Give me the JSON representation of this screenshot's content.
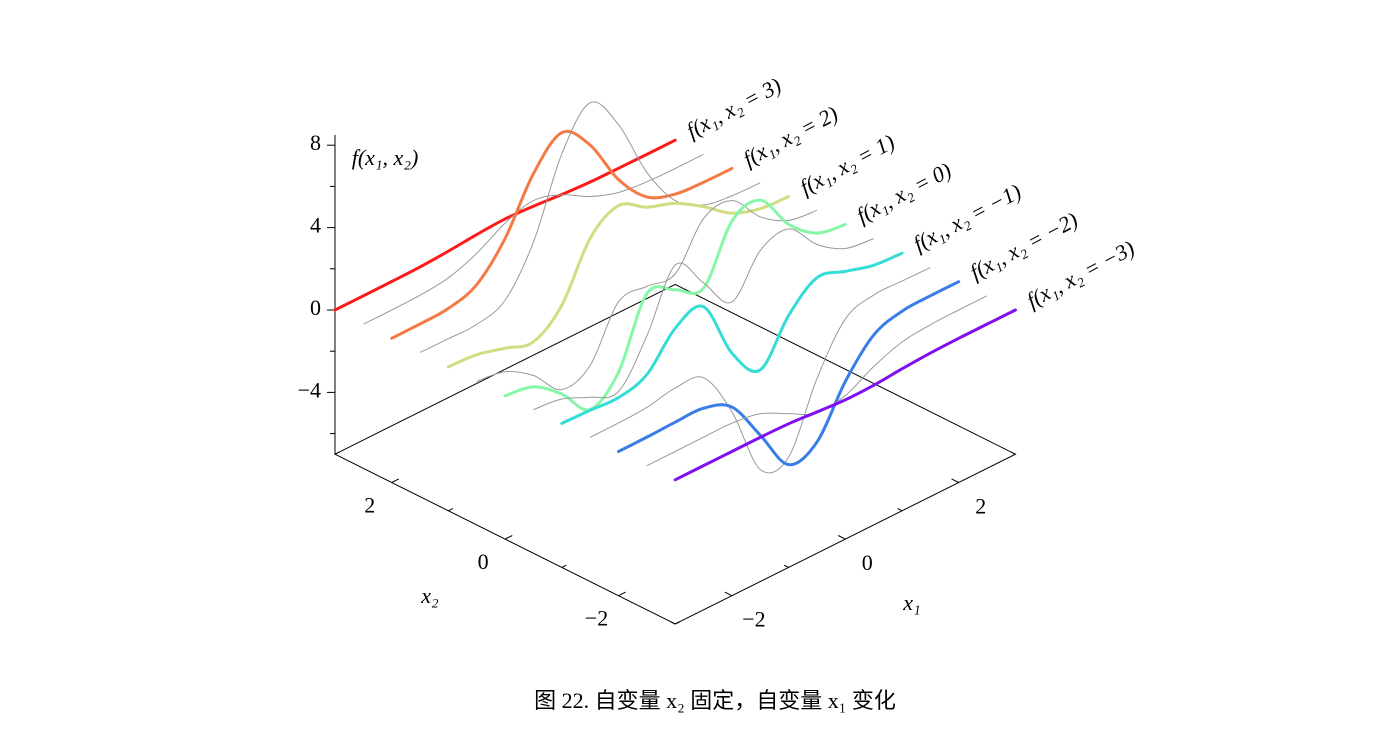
{
  "chart_data": {
    "type": "surface3d",
    "caption": "图 22. 自变量 x₂ 固定，自变量 x₁ 变化",
    "x_label": "x₁",
    "y_label": "x₂",
    "z_label": "f(x₁, x₂)",
    "x": [
      -3,
      -2.5,
      -2,
      -1.5,
      -1,
      -0.5,
      0,
      0.5,
      1,
      1.5,
      2,
      2.5,
      3
    ],
    "xlim": [
      -3,
      3
    ],
    "ylim": [
      -3,
      3
    ],
    "zlim": [
      -7,
      8.5
    ],
    "xticks": [
      {
        "value": -2,
        "label": "−2"
      },
      0,
      2
    ],
    "x_minor_ticks": [
      -3,
      -1,
      1,
      3
    ],
    "yticks": [
      2,
      0,
      {
        "value": -2,
        "label": "−2"
      }
    ],
    "y_minor_ticks": [
      3,
      1,
      -1,
      -3
    ],
    "zticks": [
      8,
      4,
      0,
      {
        "value": -4,
        "label": "−4"
      }
    ],
    "z_minor_ticks": [
      6,
      2,
      -2,
      -6
    ],
    "mesh": {
      "color": "#999999",
      "y": [
        2.5,
        1.5,
        0.5,
        -0.5,
        -1.5,
        -2.5
      ],
      "z": [
        [
          0,
          0,
          0.03,
          0.19,
          0.69,
          1.47,
          1.88,
          1.47,
          0.7,
          0.21,
          0.04,
          0,
          0
        ],
        [
          0,
          -0.02,
          -0.01,
          0.48,
          2.61,
          6.2,
          8.0,
          6.25,
          3.25,
          1.19,
          0.29,
          0.05,
          0
        ],
        [
          -0.03,
          -0.25,
          -1.12,
          -2.49,
          -2.0,
          0.39,
          0.46,
          0.38,
          2.38,
          2.56,
          1.09,
          0.23,
          0.03
        ],
        [
          -0.03,
          -0.2,
          -0.8,
          -1.21,
          0.8,
          3.55,
          2.0,
          0.39,
          2.2,
          2.56,
          1.12,
          0.24,
          0.03
        ],
        [
          0,
          0.01,
          0.08,
          0.33,
          0.15,
          -2.19,
          -5.68,
          -5.76,
          -2.64,
          -0.44,
          0.04,
          0.03,
          0
        ],
        [
          0,
          0,
          0.01,
          0,
          -0.23,
          -0.91,
          -1.57,
          -1.41,
          -0.69,
          -0.18,
          -0.03,
          0,
          0
        ]
      ]
    },
    "series": [
      {
        "name": "f(x₁, x₂ = 3)",
        "y": 3,
        "color": "#ff1a1a",
        "values": [
          0,
          0,
          0.01,
          0.03,
          0.11,
          0.23,
          0.3,
          0.23,
          0.11,
          0.03,
          0.01,
          0,
          0
        ]
      },
      {
        "name": "f(x₁, x₂ = 2)",
        "y": 2,
        "color": "#f47a45",
        "values": [
          0,
          0.01,
          0.08,
          0.55,
          2.1,
          4.56,
          5.86,
          4.57,
          2.21,
          0.68,
          0.13,
          0.02,
          0
        ]
      },
      {
        "name": "f(x₁, x₂ = 1)",
        "y": 1,
        "color": "#d2dc82",
        "values": [
          -0.01,
          -0.11,
          -0.48,
          -0.86,
          0.23,
          2.79,
          3.69,
          2.93,
          2.43,
          1.58,
          0.58,
          0.11,
          0.01
        ]
      },
      {
        "name": "f(x₁, x₂ = 0)",
        "y": 0,
        "color": "#86f7a6",
        "values": [
          -0.04,
          -0.3,
          -1.33,
          -2.77,
          -1.65,
          1.48,
          0.98,
          0.37,
          2.94,
          3.27,
          1.41,
          0.3,
          0.03
        ]
      },
      {
        "name": "f(x₁, x₂ = −1)",
        "y": -1,
        "color": "#36dcd6",
        "values": [
          -0.01,
          -0.06,
          -0.13,
          0.3,
          1.86,
          2.22,
          -0.72,
          -2.22,
          -0.27,
          0.88,
          0.5,
          0.11,
          0.01
        ]
      },
      {
        "name": "f(x₁, x₂ = −2)",
        "y": -2,
        "color": "#3a7de8",
        "values": [
          0,
          0.01,
          0.05,
          0.04,
          -0.59,
          -2.64,
          -4.76,
          -4.35,
          -2.1,
          -0.53,
          -0.06,
          0,
          0
        ]
      },
      {
        "name": "f(x₁, x₂ = −3)",
        "y": -3,
        "color": "#8010f0",
        "values": [
          0,
          0,
          0,
          0,
          -0.03,
          -0.14,
          -0.24,
          -0.22,
          -0.11,
          -0.03,
          0,
          0,
          0
        ]
      }
    ]
  }
}
